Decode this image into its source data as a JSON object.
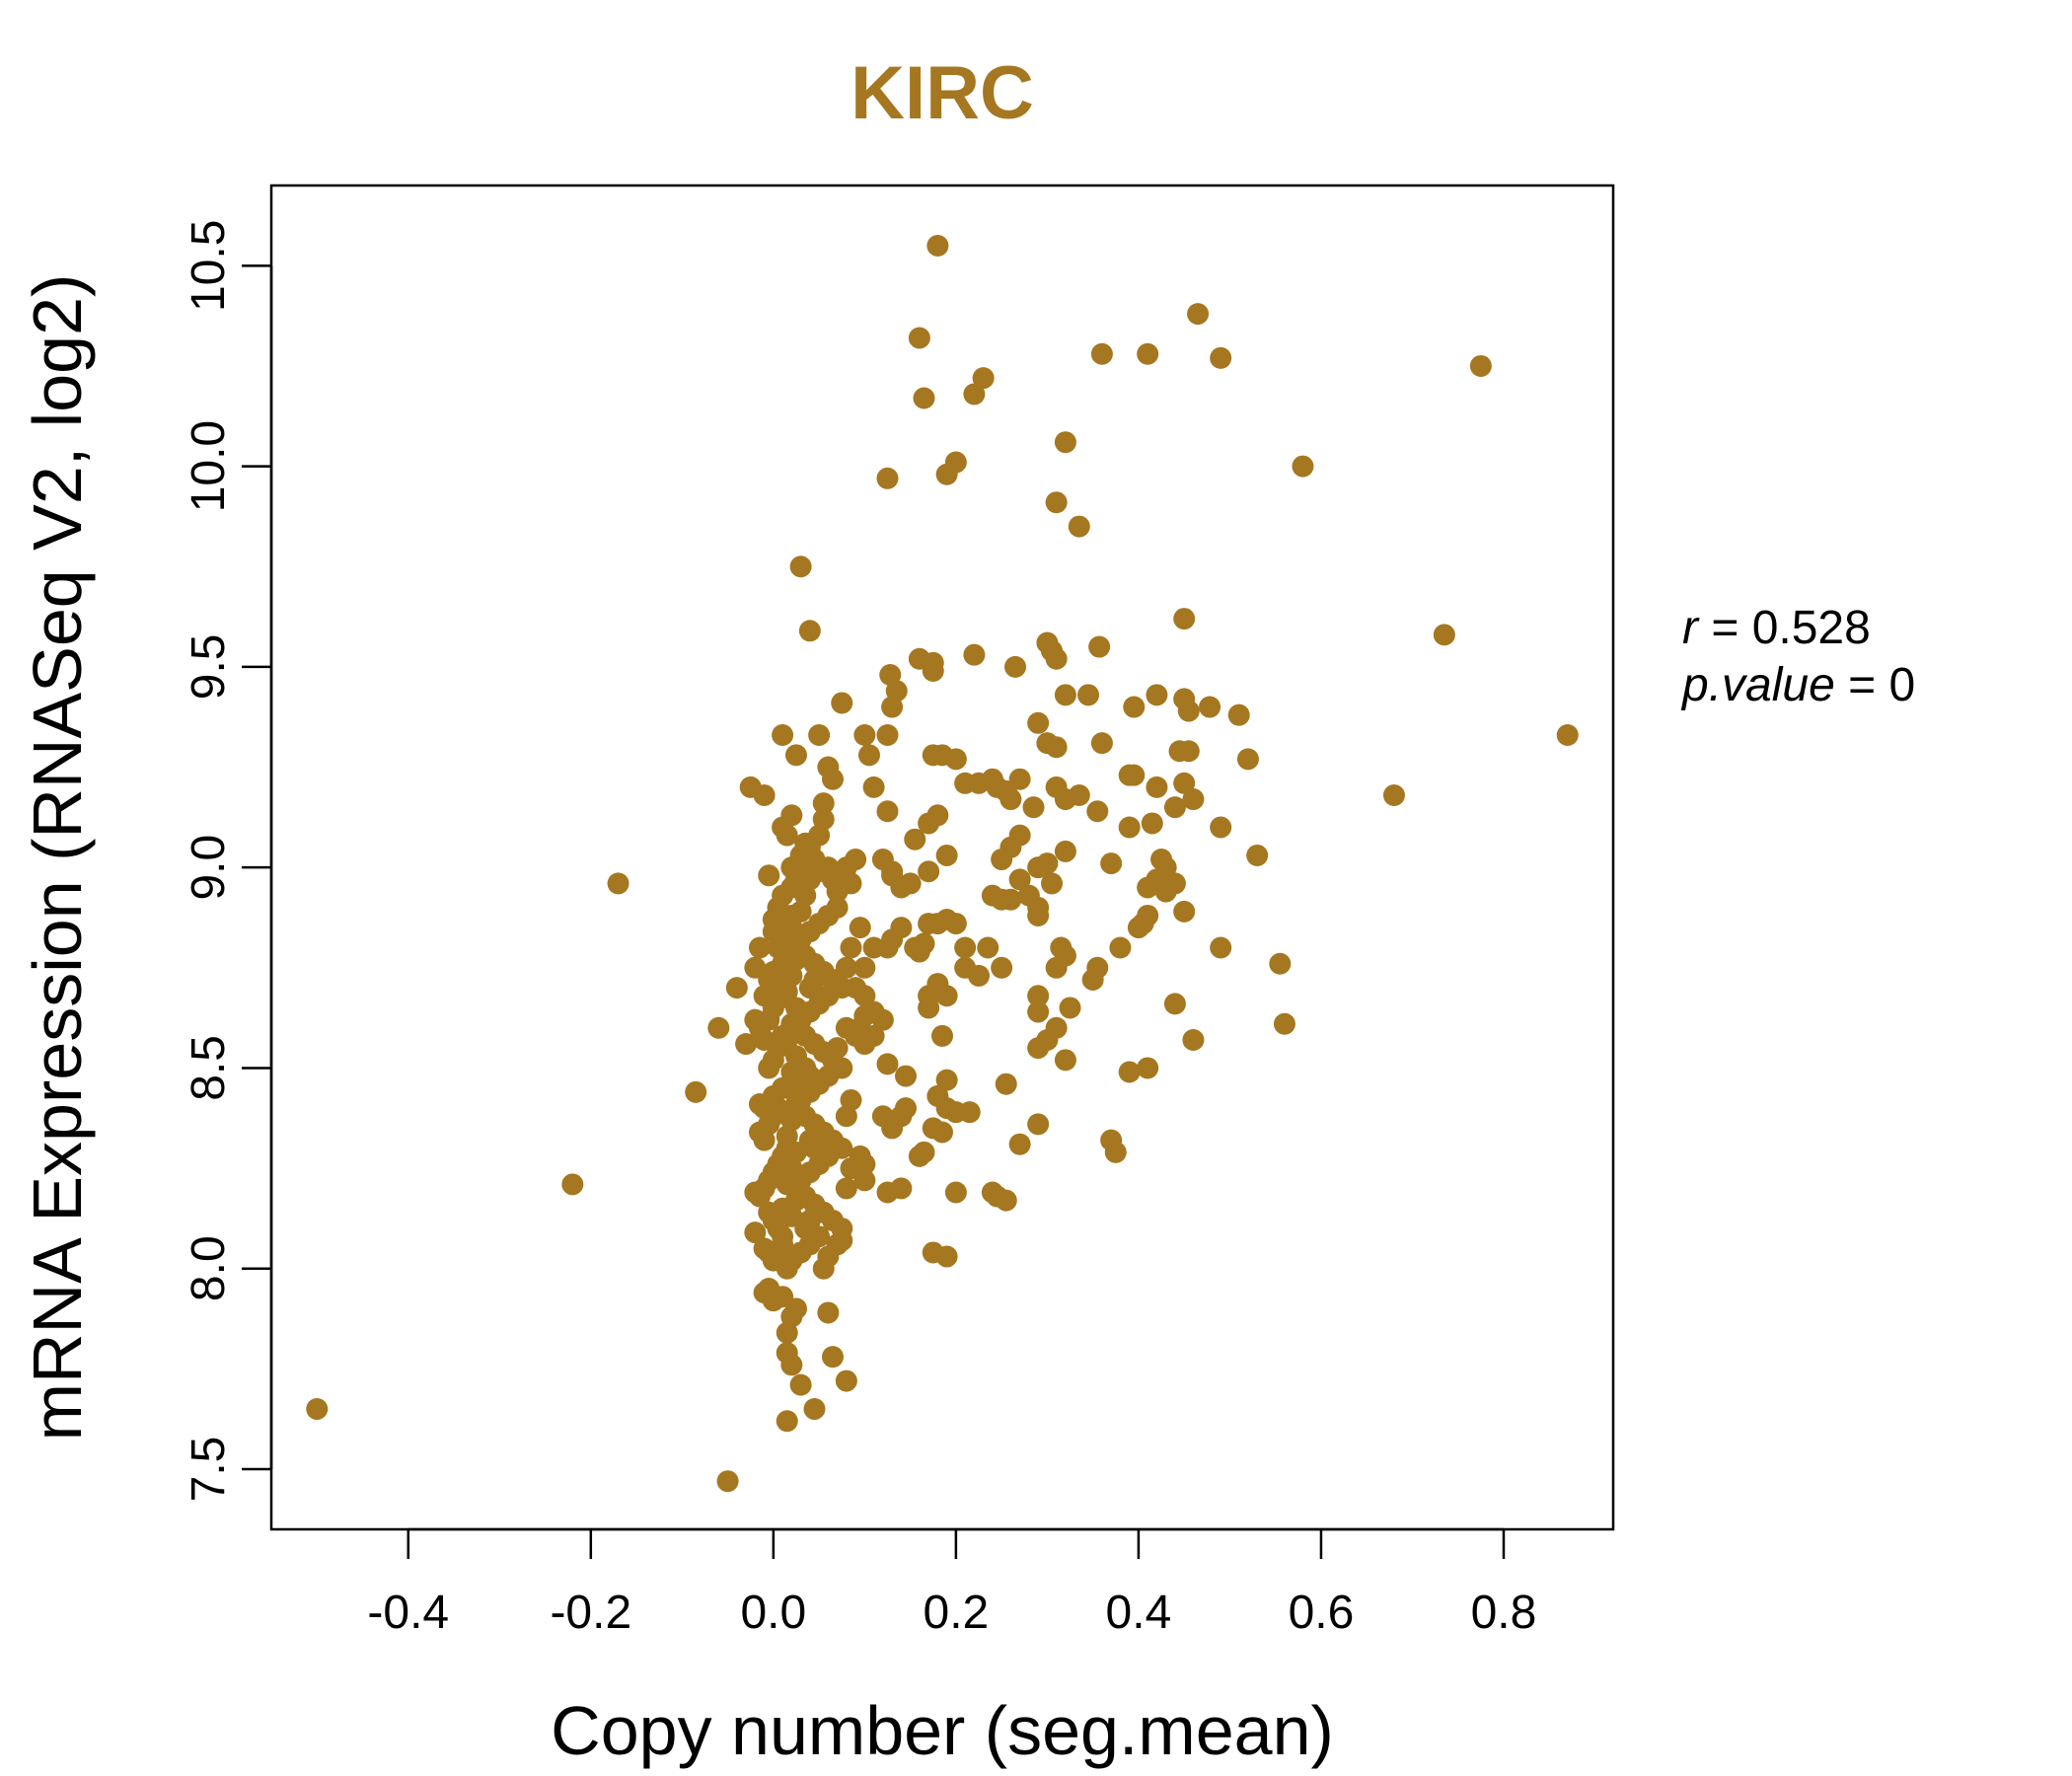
{
  "chart_data": {
    "type": "scatter",
    "title": "KIRC",
    "xlabel": "Copy number (seg.mean)",
    "ylabel": "mRNA Expression (RNASeq V2, log2)",
    "xlim": [
      -0.55,
      0.92
    ],
    "ylim": [
      7.35,
      10.7
    ],
    "x_ticks": [
      -0.4,
      -0.2,
      0.0,
      0.2,
      0.4,
      0.6,
      0.8
    ],
    "x_tick_labels": [
      "-0.4",
      "-0.2",
      "0.0",
      "0.2",
      "0.4",
      "0.6",
      "0.8"
    ],
    "y_ticks": [
      7.5,
      8.0,
      8.5,
      9.0,
      9.5,
      10.0,
      10.5
    ],
    "y_tick_labels": [
      "7.5",
      "8.0",
      "8.5",
      "9.0",
      "9.5",
      "10.0",
      "10.5"
    ],
    "grid": false,
    "point_color": "#A57720",
    "annotation": {
      "r_symbol": "r",
      "r_value": "0.528",
      "p_symbol": "p.value",
      "p_value": "0"
    },
    "points": [
      [
        -0.5,
        7.65
      ],
      [
        -0.22,
        8.21
      ],
      [
        -0.17,
        8.96
      ],
      [
        -0.085,
        8.44
      ],
      [
        -0.06,
        8.6
      ],
      [
        -0.05,
        7.47
      ],
      [
        -0.04,
        8.7
      ],
      [
        -0.03,
        8.56
      ],
      [
        -0.02,
        8.75
      ],
      [
        -0.025,
        9.2
      ],
      [
        -0.01,
        9.18
      ],
      [
        -0.02,
        8.62
      ],
      [
        -0.015,
        8.8
      ],
      [
        0.0,
        8.87
      ],
      [
        -0.005,
        8.98
      ],
      [
        0.01,
        9.33
      ],
      [
        0.01,
        9.1
      ],
      [
        0.015,
        9.08
      ],
      [
        0.02,
        9.13
      ],
      [
        0.025,
        9.28
      ],
      [
        0.03,
        9.75
      ],
      [
        0.04,
        9.59
      ],
      [
        0.05,
        9.33
      ],
      [
        0.055,
        9.16
      ],
      [
        0.06,
        9.25
      ],
      [
        0.065,
        9.22
      ],
      [
        0.075,
        9.41
      ],
      [
        0.1,
        9.33
      ],
      [
        0.105,
        9.28
      ],
      [
        0.11,
        9.2
      ],
      [
        0.125,
        9.14
      ],
      [
        0.125,
        9.33
      ],
      [
        0.128,
        9.48
      ],
      [
        0.135,
        9.44
      ],
      [
        0.13,
        9.4
      ],
      [
        0.16,
        9.52
      ],
      [
        0.175,
        9.51
      ],
      [
        0.175,
        9.49
      ],
      [
        0.185,
        9.28
      ],
      [
        0.175,
        9.28
      ],
      [
        0.2,
        9.27
      ],
      [
        0.21,
        9.21
      ],
      [
        0.22,
        9.53
      ],
      [
        0.225,
        9.21
      ],
      [
        0.24,
        9.22
      ],
      [
        0.245,
        9.2
      ],
      [
        0.265,
        9.5
      ],
      [
        0.3,
        9.56
      ],
      [
        0.305,
        9.54
      ],
      [
        0.31,
        9.52
      ],
      [
        0.32,
        9.43
      ],
      [
        0.345,
        9.43
      ],
      [
        0.357,
        9.55
      ],
      [
        0.29,
        9.36
      ],
      [
        0.3,
        9.31
      ],
      [
        0.31,
        9.3
      ],
      [
        0.36,
        9.31
      ],
      [
        0.395,
        9.4
      ],
      [
        0.42,
        9.43
      ],
      [
        0.45,
        9.42
      ],
      [
        0.455,
        9.39
      ],
      [
        0.478,
        9.4
      ],
      [
        0.51,
        9.38
      ],
      [
        0.52,
        9.27
      ],
      [
        0.45,
        9.62
      ],
      [
        0.16,
        10.32
      ],
      [
        0.165,
        10.17
      ],
      [
        0.18,
        10.55
      ],
      [
        0.19,
        9.98
      ],
      [
        0.2,
        10.01
      ],
      [
        0.22,
        10.18
      ],
      [
        0.23,
        10.22
      ],
      [
        0.125,
        9.97
      ],
      [
        0.31,
        9.91
      ],
      [
        0.32,
        10.06
      ],
      [
        0.335,
        9.85
      ],
      [
        0.36,
        10.28
      ],
      [
        0.41,
        10.28
      ],
      [
        0.465,
        10.38
      ],
      [
        0.49,
        10.27
      ],
      [
        0.58,
        10.0
      ],
      [
        0.735,
        9.58
      ],
      [
        0.775,
        10.25
      ],
      [
        0.87,
        9.33
      ],
      [
        0.68,
        9.18
      ],
      [
        0.53,
        9.03
      ],
      [
        0.49,
        9.1
      ],
      [
        0.46,
        9.17
      ],
      [
        0.45,
        9.21
      ],
      [
        0.445,
        9.29
      ],
      [
        0.455,
        9.29
      ],
      [
        0.44,
        9.15
      ],
      [
        0.43,
        9.0
      ],
      [
        0.425,
        9.02
      ],
      [
        0.42,
        8.97
      ],
      [
        0.43,
        8.94
      ],
      [
        0.44,
        8.96
      ],
      [
        0.41,
        8.95
      ],
      [
        0.405,
        8.86
      ],
      [
        0.41,
        8.88
      ],
      [
        0.4,
        8.85
      ],
      [
        0.45,
        8.89
      ],
      [
        0.395,
        9.23
      ],
      [
        0.39,
        9.23
      ],
      [
        0.39,
        9.1
      ],
      [
        0.415,
        9.11
      ],
      [
        0.42,
        9.2
      ],
      [
        0.355,
        9.14
      ],
      [
        0.335,
        9.18
      ],
      [
        0.32,
        9.17
      ],
      [
        0.31,
        9.2
      ],
      [
        0.37,
        9.01
      ],
      [
        0.32,
        9.04
      ],
      [
        0.3,
        9.01
      ],
      [
        0.305,
        8.96
      ],
      [
        0.29,
        9.0
      ],
      [
        0.285,
        9.15
      ],
      [
        0.27,
        9.22
      ],
      [
        0.26,
        9.17
      ],
      [
        0.255,
        9.19
      ],
      [
        0.27,
        9.08
      ],
      [
        0.26,
        9.05
      ],
      [
        0.25,
        9.02
      ],
      [
        0.24,
        8.93
      ],
      [
        0.25,
        8.92
      ],
      [
        0.26,
        8.92
      ],
      [
        0.27,
        8.97
      ],
      [
        0.28,
        8.93
      ],
      [
        0.29,
        8.88
      ],
      [
        0.29,
        8.9
      ],
      [
        0.315,
        8.8
      ],
      [
        0.31,
        8.75
      ],
      [
        0.32,
        8.78
      ],
      [
        0.355,
        8.75
      ],
      [
        0.35,
        8.72
      ],
      [
        0.38,
        8.8
      ],
      [
        0.29,
        8.68
      ],
      [
        0.29,
        8.64
      ],
      [
        0.3,
        8.57
      ],
      [
        0.31,
        8.6
      ],
      [
        0.325,
        8.65
      ],
      [
        0.29,
        8.55
      ],
      [
        0.32,
        8.52
      ],
      [
        0.39,
        8.49
      ],
      [
        0.41,
        8.5
      ],
      [
        0.44,
        8.66
      ],
      [
        0.46,
        8.57
      ],
      [
        0.49,
        8.8
      ],
      [
        0.555,
        8.76
      ],
      [
        0.56,
        8.61
      ],
      [
        0.29,
        8.36
      ],
      [
        0.27,
        8.31
      ],
      [
        0.37,
        8.32
      ],
      [
        0.375,
        8.29
      ],
      [
        0.255,
        8.46
      ],
      [
        0.255,
        8.17
      ],
      [
        0.24,
        8.19
      ],
      [
        0.245,
        8.18
      ],
      [
        0.21,
        8.8
      ],
      [
        0.2,
        8.86
      ],
      [
        0.19,
        8.87
      ],
      [
        0.18,
        8.86
      ],
      [
        0.17,
        8.86
      ],
      [
        0.165,
        8.81
      ],
      [
        0.16,
        8.79
      ],
      [
        0.14,
        8.85
      ],
      [
        0.13,
        8.82
      ],
      [
        0.125,
        8.8
      ],
      [
        0.11,
        8.8
      ],
      [
        0.18,
        8.71
      ],
      [
        0.17,
        8.68
      ],
      [
        0.17,
        8.65
      ],
      [
        0.19,
        8.68
      ],
      [
        0.185,
        8.58
      ],
      [
        0.21,
        8.75
      ],
      [
        0.225,
        8.73
      ],
      [
        0.235,
        8.8
      ],
      [
        0.25,
        8.75
      ],
      [
        0.2,
        8.39
      ],
      [
        0.215,
        8.39
      ],
      [
        0.18,
        8.43
      ],
      [
        0.19,
        8.47
      ],
      [
        0.185,
        8.34
      ],
      [
        0.19,
        8.4
      ],
      [
        0.175,
        8.35
      ],
      [
        0.16,
        8.28
      ],
      [
        0.165,
        8.29
      ],
      [
        0.145,
        8.4
      ],
      [
        0.14,
        8.38
      ],
      [
        0.12,
        8.38
      ],
      [
        0.13,
        8.35
      ],
      [
        0.145,
        8.48
      ],
      [
        0.125,
        8.51
      ],
      [
        0.14,
        8.2
      ],
      [
        0.125,
        8.19
      ],
      [
        0.175,
        8.04
      ],
      [
        0.19,
        8.03
      ],
      [
        0.2,
        8.19
      ],
      [
        0.155,
        8.8
      ],
      [
        0.16,
        8.8
      ],
      [
        0.14,
        8.95
      ],
      [
        0.13,
        8.99
      ],
      [
        0.12,
        9.02
      ],
      [
        0.13,
        8.98
      ],
      [
        0.155,
        9.07
      ],
      [
        0.17,
        9.11
      ],
      [
        0.18,
        9.13
      ],
      [
        0.19,
        9.03
      ],
      [
        0.17,
        8.99
      ],
      [
        0.15,
        8.96
      ],
      [
        0.12,
        8.62
      ],
      [
        0.11,
        8.64
      ],
      [
        0.1,
        8.63
      ],
      [
        0.1,
        8.26
      ],
      [
        0.095,
        8.28
      ],
      [
        0.1,
        8.22
      ],
      [
        0.075,
        8.07
      ],
      [
        0.07,
        8.06
      ],
      [
        0.06,
        8.03
      ],
      [
        0.055,
        8.0
      ],
      [
        0.06,
        7.89
      ],
      [
        0.065,
        7.78
      ],
      [
        0.08,
        7.72
      ],
      [
        0.045,
        7.65
      ],
      [
        0.015,
        7.62
      ],
      [
        0.03,
        7.71
      ],
      [
        0.02,
        7.76
      ],
      [
        0.015,
        7.79
      ],
      [
        0.015,
        7.84
      ],
      [
        0.02,
        7.88
      ],
      [
        0.025,
        7.9
      ],
      [
        0.01,
        7.93
      ],
      [
        0.0,
        7.92
      ],
      [
        -0.005,
        7.95
      ],
      [
        -0.01,
        7.94
      ],
      [
        0.0,
        8.02
      ],
      [
        -0.005,
        8.04
      ],
      [
        -0.01,
        8.05
      ],
      [
        0.01,
        8.08
      ],
      [
        -0.02,
        8.09
      ],
      [
        -0.015,
        8.18
      ],
      [
        -0.02,
        8.19
      ],
      [
        -0.005,
        8.14
      ],
      [
        0.0,
        8.12
      ],
      [
        0.005,
        8.1
      ],
      [
        0.01,
        8.15
      ],
      [
        -0.01,
        8.2
      ],
      [
        -0.005,
        8.22
      ],
      [
        0.0,
        8.24
      ],
      [
        0.005,
        8.26
      ],
      [
        0.01,
        8.28
      ],
      [
        0.015,
        8.3
      ],
      [
        -0.015,
        8.34
      ],
      [
        -0.01,
        8.32
      ],
      [
        -0.005,
        8.36
      ],
      [
        0.0,
        8.38
      ],
      [
        0.005,
        8.4
      ],
      [
        -0.01,
        8.4
      ],
      [
        -0.015,
        8.41
      ],
      [
        0.0,
        8.43
      ],
      [
        0.01,
        8.45
      ],
      [
        0.02,
        8.46
      ],
      [
        -0.005,
        8.5
      ],
      [
        0.0,
        8.52
      ],
      [
        0.005,
        8.55
      ],
      [
        0.01,
        8.58
      ],
      [
        -0.01,
        8.57
      ],
      [
        -0.015,
        8.6
      ],
      [
        -0.005,
        8.62
      ],
      [
        0.0,
        8.65
      ],
      [
        0.005,
        8.67
      ],
      [
        0.01,
        8.7
      ],
      [
        -0.01,
        8.68
      ],
      [
        -0.005,
        8.72
      ],
      [
        0.0,
        8.74
      ],
      [
        0.01,
        8.76
      ],
      [
        0.005,
        8.8
      ],
      [
        0.01,
        8.82
      ],
      [
        0.0,
        8.84
      ],
      [
        0.015,
        8.86
      ],
      [
        0.02,
        8.88
      ],
      [
        0.005,
        8.9
      ],
      [
        0.01,
        8.93
      ],
      [
        0.02,
        8.95
      ],
      [
        0.025,
        8.97
      ],
      [
        0.03,
        8.99
      ],
      [
        0.02,
        9.0
      ],
      [
        0.03,
        9.03
      ],
      [
        0.04,
        9.05
      ],
      [
        0.05,
        9.08
      ],
      [
        0.055,
        9.12
      ],
      [
        0.035,
        9.06
      ],
      [
        0.045,
        9.02
      ],
      [
        0.05,
        8.99
      ],
      [
        0.06,
        9.0
      ],
      [
        0.065,
        8.97
      ],
      [
        0.07,
        8.94
      ],
      [
        0.075,
        8.97
      ],
      [
        0.08,
        9.0
      ],
      [
        0.09,
        9.02
      ],
      [
        0.085,
        8.96
      ],
      [
        0.07,
        8.9
      ],
      [
        0.06,
        8.88
      ],
      [
        0.05,
        8.86
      ],
      [
        0.04,
        8.84
      ],
      [
        0.03,
        8.82
      ],
      [
        0.025,
        8.8
      ],
      [
        0.035,
        8.78
      ],
      [
        0.045,
        8.76
      ],
      [
        0.055,
        8.74
      ],
      [
        0.065,
        8.72
      ],
      [
        0.075,
        8.7
      ],
      [
        0.08,
        8.75
      ],
      [
        0.085,
        8.8
      ],
      [
        0.06,
        8.68
      ],
      [
        0.05,
        8.66
      ],
      [
        0.04,
        8.64
      ],
      [
        0.03,
        8.62
      ],
      [
        0.025,
        8.6
      ],
      [
        0.035,
        8.58
      ],
      [
        0.045,
        8.56
      ],
      [
        0.055,
        8.54
      ],
      [
        0.065,
        8.52
      ],
      [
        0.075,
        8.5
      ],
      [
        0.07,
        8.55
      ],
      [
        0.08,
        8.6
      ],
      [
        0.09,
        8.58
      ],
      [
        0.1,
        8.56
      ],
      [
        0.06,
        8.48
      ],
      [
        0.05,
        8.46
      ],
      [
        0.04,
        8.44
      ],
      [
        0.03,
        8.42
      ],
      [
        0.025,
        8.4
      ],
      [
        0.035,
        8.38
      ],
      [
        0.045,
        8.36
      ],
      [
        0.055,
        8.34
      ],
      [
        0.065,
        8.32
      ],
      [
        0.075,
        8.3
      ],
      [
        0.08,
        8.38
      ],
      [
        0.085,
        8.42
      ],
      [
        0.06,
        8.28
      ],
      [
        0.05,
        8.26
      ],
      [
        0.04,
        8.24
      ],
      [
        0.03,
        8.22
      ],
      [
        0.025,
        8.2
      ],
      [
        0.035,
        8.18
      ],
      [
        0.045,
        8.16
      ],
      [
        0.055,
        8.14
      ],
      [
        0.065,
        8.12
      ],
      [
        0.075,
        8.1
      ],
      [
        0.08,
        8.2
      ],
      [
        0.085,
        8.25
      ],
      [
        0.05,
        8.08
      ],
      [
        0.04,
        8.06
      ],
      [
        0.03,
        8.04
      ],
      [
        0.02,
        8.02
      ],
      [
        0.015,
        8.0
      ],
      [
        0.01,
        8.06
      ],
      [
        0.005,
        8.11
      ],
      [
        0.02,
        8.13
      ],
      [
        0.025,
        8.17
      ],
      [
        0.015,
        8.21
      ],
      [
        0.02,
        8.25
      ],
      [
        0.025,
        8.29
      ],
      [
        0.015,
        8.33
      ],
      [
        0.02,
        8.37
      ],
      [
        0.025,
        8.41
      ],
      [
        0.015,
        8.45
      ],
      [
        0.02,
        8.49
      ],
      [
        0.025,
        8.53
      ],
      [
        0.015,
        8.57
      ],
      [
        0.02,
        8.61
      ],
      [
        0.025,
        8.65
      ],
      [
        0.015,
        8.69
      ],
      [
        0.02,
        8.73
      ],
      [
        0.025,
        8.77
      ],
      [
        0.015,
        8.81
      ],
      [
        0.02,
        8.85
      ],
      [
        0.03,
        8.89
      ],
      [
        0.035,
        8.93
      ],
      [
        0.04,
        8.97
      ],
      [
        0.045,
        9.01
      ],
      [
        0.04,
        8.7
      ],
      [
        0.045,
        8.72
      ],
      [
        0.035,
        8.5
      ],
      [
        0.04,
        8.48
      ],
      [
        0.045,
        8.3
      ],
      [
        0.04,
        8.32
      ],
      [
        0.035,
        8.1
      ],
      [
        0.04,
        8.12
      ],
      [
        0.1,
        8.68
      ],
      [
        0.095,
        8.6
      ],
      [
        0.11,
        8.58
      ],
      [
        0.09,
        8.7
      ],
      [
        0.1,
        8.75
      ],
      [
        0.095,
        8.85
      ]
    ]
  }
}
